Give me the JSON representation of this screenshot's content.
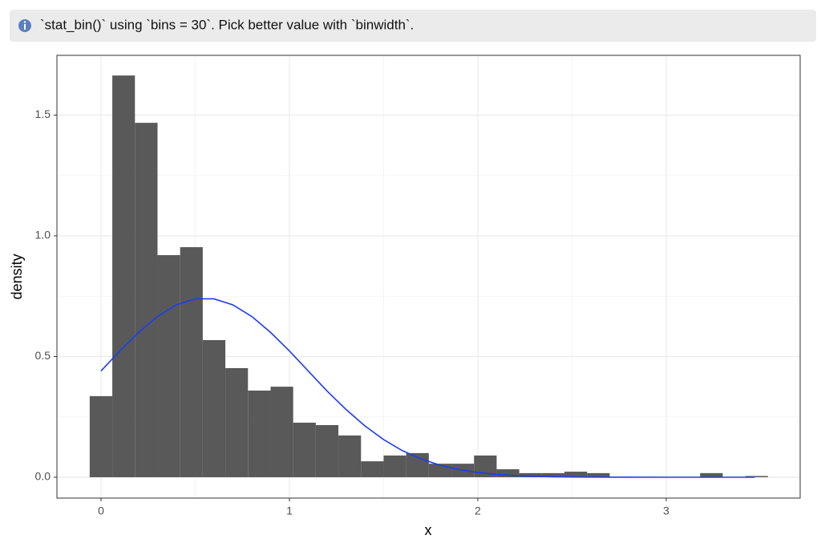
{
  "message": "`stat_bin()` using `bins = 30`. Pick better value with `binwidth`.",
  "chart_data": {
    "type": "histogram",
    "x_label": "x",
    "y_label": "density",
    "bins": [
      -0.06,
      0.06,
      0.18,
      0.3,
      0.42,
      0.54,
      0.66,
      0.78,
      0.9,
      1.02,
      1.14,
      1.26,
      1.38,
      1.5,
      1.62,
      1.74,
      1.86,
      1.98,
      2.1,
      2.22,
      2.34,
      2.46,
      2.58,
      2.7,
      2.82,
      2.94,
      3.06,
      3.18,
      3.3,
      3.42,
      3.54
    ],
    "values": [
      0.336,
      1.664,
      1.468,
      0.92,
      0.953,
      0.568,
      0.452,
      0.359,
      0.375,
      0.226,
      0.216,
      0.173,
      0.066,
      0.09,
      0.1,
      0.056,
      0.056,
      0.09,
      0.033,
      0.017,
      0.017,
      0.023,
      0.017,
      0,
      0,
      0,
      0,
      0.017,
      0,
      0.005
    ],
    "color": "#595959",
    "curve": {
      "color": "#1f3cf0",
      "x": [
        0,
        0.1,
        0.2,
        0.3,
        0.4,
        0.5,
        0.6,
        0.7,
        0.8,
        0.9,
        1.0,
        1.1,
        1.2,
        1.3,
        1.4,
        1.5,
        1.6,
        1.7,
        1.8,
        1.9,
        2.0,
        2.1,
        2.2,
        2.3,
        2.4,
        2.5,
        2.6,
        2.8,
        3.0,
        3.2,
        3.47
      ],
      "values": [
        0.44,
        0.523,
        0.6,
        0.666,
        0.714,
        0.739,
        0.739,
        0.714,
        0.666,
        0.6,
        0.523,
        0.44,
        0.357,
        0.281,
        0.213,
        0.156,
        0.11,
        0.0754,
        0.0498,
        0.0318,
        0.0196,
        0.0117,
        0.0067,
        0.0037,
        0.002,
        0.001,
        0.0005,
        0.0001,
        0,
        0,
        0
      ]
    },
    "xlim": [
      -0.234,
      3.711
    ],
    "ylim": [
      -0.0864,
      1.7475
    ],
    "xticks": [
      0,
      1,
      2,
      3
    ],
    "yticks": [
      {
        "value": 0,
        "label": "0.0"
      },
      0.5,
      {
        "value": 1,
        "label": "1.0"
      },
      1.5
    ],
    "grid": true
  }
}
